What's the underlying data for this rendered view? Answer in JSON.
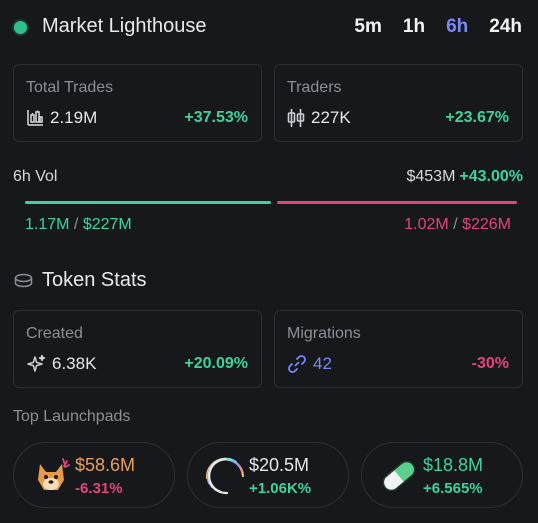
{
  "header": {
    "title": "Market Lighthouse",
    "tabs": [
      {
        "label": "5m",
        "active": false
      },
      {
        "label": "1h",
        "active": false
      },
      {
        "label": "6h",
        "active": true
      },
      {
        "label": "24h",
        "active": false
      }
    ]
  },
  "trades": {
    "total": {
      "label": "Total Trades",
      "value": "2.19M",
      "change": "+37.53%",
      "icon": "candlestick-chart-icon"
    },
    "traders": {
      "label": "Traders",
      "value": "227K",
      "change": "+23.67%",
      "icon": "candlestick-icon"
    }
  },
  "volume": {
    "label": "6h Vol",
    "total": "$453M",
    "change": "+43.00%",
    "buy_share": 0.506,
    "buy_count": "1.17M",
    "buy_amount": "$227M",
    "sell_count": "1.02M",
    "sell_amount": "$226M",
    "separator": "/"
  },
  "token_stats": {
    "title": "Token Stats",
    "icon": "coins-icon",
    "created": {
      "label": "Created",
      "value": "6.38K",
      "change": "+20.09%",
      "icon": "sparkle-icon"
    },
    "migrations": {
      "label": "Migrations",
      "value": "42",
      "change": "-30%",
      "icon": "link-icon"
    }
  },
  "launchpads": {
    "title": "Top Launchpads",
    "items": [
      {
        "value": "$58.6M",
        "change": "-6.31%",
        "icon": "doge-icon"
      },
      {
        "value": "$20.5M",
        "change": "+1.06K%",
        "icon": "rainbow-orb-icon"
      },
      {
        "value": "$18.8M",
        "change": "+6.565%",
        "icon": "pill-icon"
      }
    ]
  },
  "colors": {
    "accent": "#7b87f5",
    "positive": "#3ed39a",
    "negative": "#e0467a",
    "bonk_value": "#e8a05a",
    "live_dot": "#2fbf8f"
  }
}
